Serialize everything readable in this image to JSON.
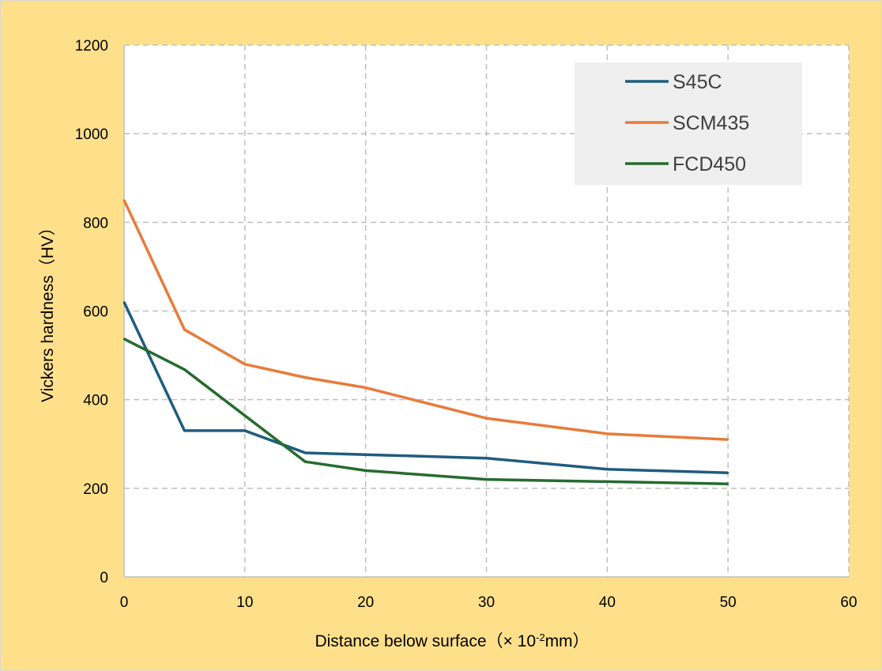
{
  "colors": {
    "background": "#ffe08a",
    "plot_area": "#ffffff",
    "legend_box": "#efefef",
    "grid": "#bfbfbf"
  },
  "chart_data": {
    "type": "line",
    "title": "",
    "xlabel": "Distance below surface（× 10",
    "xlabel_sup": "-2",
    "xlabel_unit": "mm）",
    "ylabel": "Vickers hardness（HV）",
    "xlim": [
      0,
      60
    ],
    "ylim": [
      0,
      1200
    ],
    "xticks": [
      0,
      10,
      20,
      30,
      40,
      50,
      60
    ],
    "yticks": [
      0,
      200,
      400,
      600,
      800,
      1000,
      1200
    ],
    "grid": true,
    "legend_position": "top-right",
    "series": [
      {
        "name": "S45C",
        "color": "#1f5c7f",
        "x": [
          0,
          5,
          10,
          15,
          30,
          40,
          50
        ],
        "values": [
          620,
          330,
          330,
          280,
          268,
          243,
          235
        ]
      },
      {
        "name": "SCM435",
        "color": "#e97a3a",
        "x": [
          0,
          5,
          10,
          15,
          20,
          30,
          40,
          50
        ],
        "values": [
          850,
          558,
          480,
          450,
          427,
          358,
          323,
          310
        ]
      },
      {
        "name": "FCD450",
        "color": "#256b2f",
        "x": [
          0,
          5,
          15,
          20,
          30,
          40,
          50
        ],
        "values": [
          537,
          468,
          260,
          240,
          220,
          215,
          210
        ]
      }
    ]
  }
}
